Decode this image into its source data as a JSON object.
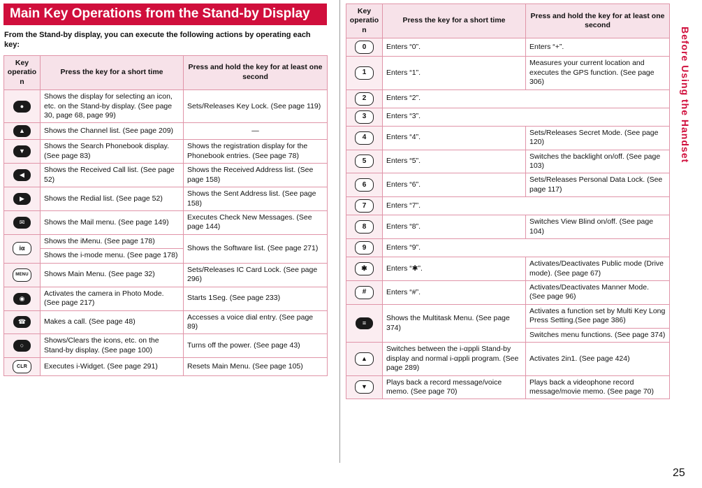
{
  "page": {
    "number": "25",
    "sidebar_text": "Before Using the Handset"
  },
  "title": "Main Key Operations from the Stand-by Display",
  "intro": "From the Stand-by display, you can execute the following actions by operating each key:",
  "table_headers": {
    "key": "Key operation",
    "short": "Press the key for a short time",
    "hold": "Press and hold the key for at least one second"
  },
  "colors": {
    "accent_red": "#d00f3c",
    "table_border": "#e094a8",
    "header_bg": "#f7e2e9",
    "key_column_bg": "#fbedf1",
    "key_black": "#1a1a1a"
  },
  "left_table": {
    "rows": [
      {
        "key": "multi-select-key",
        "glyph": "●",
        "short": "Shows the display for selecting an icon, etc. on the Stand-by display. (See page 30, page 68, page 99)",
        "hold": "Sets/Releases Key Lock. (See page 119)"
      },
      {
        "key": "up-key",
        "glyph": "▲",
        "short": "Shows the Channel list. (See page 209)",
        "hold": "—"
      },
      {
        "key": "down-key",
        "glyph": "▼",
        "short": "Shows the Search Phonebook display. (See page 83)",
        "hold": "Shows the registration display for the Phonebook entries. (See page 78)"
      },
      {
        "key": "left-key",
        "glyph": "◀",
        "short": "Shows the Received Call list. (See page 52)",
        "hold": "Shows the Received Address list. (See page 158)"
      },
      {
        "key": "right-key",
        "glyph": "▶",
        "short": "Shows the Redial list. (See page 52)",
        "hold": "Shows the Sent Address list. (See page 158)"
      },
      {
        "key": "mail-key",
        "glyph": "✉",
        "short": "Shows the Mail menu. (See page 149)",
        "hold": "Executes Check New Messages. (See page 144)"
      },
      {
        "key": "i-mode-key",
        "glyph": "iα",
        "short_a": "Shows the iMenu. (See page 178)",
        "short_b": "Shows the i-mode menu. (See page 178)",
        "hold": "Shows the Software list. (See page 271)"
      },
      {
        "key": "menu-key",
        "glyph": "MENU",
        "short": "Shows Main Menu. (See page 32)",
        "hold": "Sets/Releases IC Card Lock. (See page 296)"
      },
      {
        "key": "camera-key",
        "glyph": "◉",
        "short": "Activates the camera in Photo Mode. (See page 217)",
        "hold": "Starts 1Seg. (See page 233)"
      },
      {
        "key": "start-call-key",
        "glyph": "☎",
        "short": "Makes a call. (See page 48)",
        "hold": "Accesses a voice dial entry. (See page 89)"
      },
      {
        "key": "power-end-key",
        "glyph": "○",
        "short": "Shows/Clears the icons, etc. on the Stand-by display. (See page 100)",
        "hold": "Turns off the power. (See page 43)"
      },
      {
        "key": "clear-key",
        "glyph": "CLR",
        "short": "Executes i-Widget. (See page 291)",
        "hold": "Resets Main Menu. (See page 105)"
      }
    ]
  },
  "right_table": {
    "rows": [
      {
        "key": "key-0",
        "glyph": "0",
        "short": "Enters “0”.",
        "hold": "Enters “+”."
      },
      {
        "key": "key-1",
        "glyph": "1",
        "short": "Enters “1”.",
        "hold": "Measures your current location and executes the GPS function. (See page 306)"
      },
      {
        "key": "key-2",
        "glyph": "2",
        "short": "Enters “2”.",
        "hold": ""
      },
      {
        "key": "key-3",
        "glyph": "3",
        "short": "Enters “3”.",
        "hold": ""
      },
      {
        "key": "key-4",
        "glyph": "4",
        "short": "Enters “4”.",
        "hold": "Sets/Releases Secret Mode. (See page 120)"
      },
      {
        "key": "key-5",
        "glyph": "5",
        "short": "Enters “5”.",
        "hold": "Switches the backlight on/off. (See page 103)"
      },
      {
        "key": "key-6",
        "glyph": "6",
        "short": "Enters “6”.",
        "hold": "Sets/Releases Personal Data Lock. (See page 117)"
      },
      {
        "key": "key-7",
        "glyph": "7",
        "short": "Enters “7”.",
        "hold": ""
      },
      {
        "key": "key-8",
        "glyph": "8",
        "short": "Enters “8”.",
        "hold": "Switches View Blind on/off. (See page 104)"
      },
      {
        "key": "key-9",
        "glyph": "9",
        "short": "Enters “9”.",
        "hold": ""
      },
      {
        "key": "key-star",
        "glyph": "✱",
        "short": "Enters “✱”.",
        "hold": "Activates/Deactivates Public mode (Drive mode). (See page 67)"
      },
      {
        "key": "key-hash",
        "glyph": "#",
        "short": "Enters “#”.",
        "hold": "Activates/Deactivates Manner Mode. (See page 96)"
      },
      {
        "key": "multitask-key",
        "glyph": "≡",
        "short": "Shows the Multitask Menu. (See page 374)",
        "hold_a": "Activates a function set by Multi Key Long Press Setting.(See page 386)",
        "hold_b": "Switches menu functions. (See page 374)"
      },
      {
        "key": "side-up-key",
        "glyph": "▲",
        "short": "Switches between the i-αppli Stand-by display and normal i-αppli program. (See page 289)",
        "hold": "Activates 2in1. (See page 424)"
      },
      {
        "key": "side-down-key",
        "glyph": "▼",
        "short": "Plays back a record message/voice memo. (See page 70)",
        "hold": "Plays back a videophone record message/movie memo. (See page 70)"
      }
    ]
  }
}
